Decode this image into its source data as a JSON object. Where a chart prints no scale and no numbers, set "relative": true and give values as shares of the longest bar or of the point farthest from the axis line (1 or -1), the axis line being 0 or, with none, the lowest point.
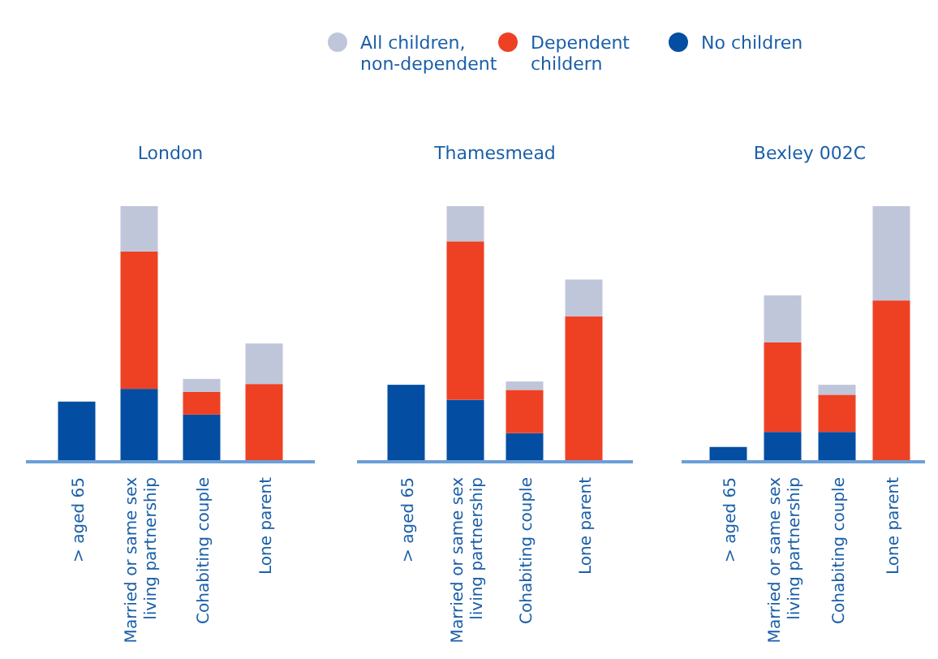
{
  "chart_data": [
    {
      "type": "bar",
      "title": "London",
      "relative": true,
      "stacked": true,
      "legend": "top",
      "categories": [
        "> aged 65",
        "Married or same sex living partnership",
        "Cohabiting couple",
        "Lone parent"
      ],
      "series": [
        {
          "name": "No children",
          "color": "#034ea2",
          "values": [
            0.233,
            0.283,
            0.182,
            0
          ]
        },
        {
          "name": "Dependent childern",
          "color": "#ee4124",
          "values": [
            0,
            0.539,
            0.089,
            0.302
          ]
        },
        {
          "name": "All children, non-dependent",
          "color": "#c0c6da",
          "values": [
            0,
            0.178,
            0.051,
            0.159
          ]
        }
      ]
    },
    {
      "type": "bar",
      "title": "Thamesmead",
      "relative": true,
      "stacked": true,
      "categories": [
        "> aged 65",
        "Married or same sex living partnership",
        "Cohabiting couple",
        "Lone parent"
      ],
      "series": [
        {
          "color": "#034ea2",
          "values": [
            0.299,
            0.24,
            0.109,
            0
          ]
        },
        {
          "color": "#ee4124",
          "values": [
            0,
            0.622,
            0.17,
            0.568
          ]
        },
        {
          "color": "#c0c6da",
          "values": [
            0,
            0.138,
            0.033,
            0.144
          ]
        }
      ]
    },
    {
      "type": "bar",
      "title": "Bexley 002C",
      "relative": true,
      "stacked": true,
      "categories": [
        "> aged 65",
        "Married or same sex living partnership",
        "Cohabiting couple",
        "Lone parent"
      ],
      "series": [
        {
          "color": "#034ea2",
          "values": [
            0.055,
            0.114,
            0.114,
            0
          ]
        },
        {
          "color": "#ee4124",
          "values": [
            0,
            0.351,
            0.146,
            0.63
          ]
        },
        {
          "color": "#c0c6da",
          "values": [
            0,
            0.185,
            0.039,
            0.37
          ]
        }
      ]
    }
  ]
}
